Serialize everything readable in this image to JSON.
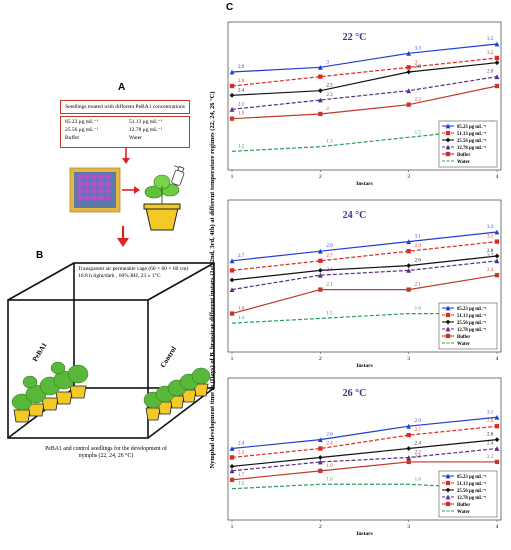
{
  "panels": {
    "a_label": "A",
    "b_label": "B",
    "c_label": "C"
  },
  "panel_a": {
    "title": "Seedlings treated with different PeBA1 concentrations",
    "concentrations": [
      "85.23 μg mL⁻¹",
      "51.13 μg mL⁻¹",
      "25.56 μg mL⁻¹",
      "12.78 μg mL⁻¹",
      "Buffer",
      "Water"
    ]
  },
  "panel_b": {
    "cage_line1": "Transparent  air permeable cage (60 × 60 × 60 cm)",
    "cage_line2": "16:8 h light/dark , 60% RH, 23 ± 1°C",
    "label_pebai": "PeBA1",
    "label_control": "Control",
    "caption_line1": "PeBA1  and control seedlings for the development of",
    "caption_line2": "nymphs (22, 24, 26 °C)"
  },
  "panel_c": {
    "ylabel": "Nymphal development time in (Days) of B. brassicae different instars (1st, 2nd, 3rd, 4th) at different temperature regimes (22, 24, 26 °C)",
    "xlabel": "Instars"
  },
  "chart_data": [
    {
      "type": "line",
      "title": "22 °C",
      "xlabel": "Instars",
      "x": [
        1,
        2,
        3,
        4
      ],
      "series": [
        {
          "name": "85.23 μg mL⁻¹",
          "values": [
            2.9,
            3.0,
            3.3,
            3.5
          ],
          "labels": [
            "2.9",
            "3",
            "3.3",
            "3.5"
          ]
        },
        {
          "name": "51.13 μg mL⁻¹",
          "values": [
            2.6,
            2.8,
            3.0,
            3.2
          ],
          "labels": [
            "2.6",
            "",
            "3",
            "3.2"
          ]
        },
        {
          "name": "25.56 μg mL⁻¹",
          "values": [
            2.4,
            2.5,
            2.9,
            3.1
          ],
          "labels": [
            "2.4",
            "2.5",
            "2.9",
            ""
          ]
        },
        {
          "name": "12.78 μg mL⁻¹",
          "values": [
            2.1,
            2.3,
            2.5,
            2.8
          ],
          "labels": [
            "2.1",
            "2.3",
            "",
            "2.8"
          ]
        },
        {
          "name": "Buffer",
          "values": [
            1.9,
            2.0,
            2.2,
            2.6
          ],
          "labels": [
            "1.9",
            "2",
            "2.2",
            ""
          ]
        },
        {
          "name": "Water",
          "values": [
            1.2,
            1.3,
            1.5,
            1.7
          ],
          "labels": [
            "1.2",
            "1.3",
            "1.5",
            "1.7"
          ]
        }
      ]
    },
    {
      "type": "line",
      "title": "24 °C",
      "xlabel": "Instars",
      "x": [
        1,
        2,
        3,
        4
      ],
      "series": [
        {
          "name": "85.23 μg mL⁻¹",
          "values": [
            2.7,
            2.9,
            3.1,
            3.3
          ],
          "labels": [
            "2.7",
            "2.9",
            "3.1",
            "3.3"
          ]
        },
        {
          "name": "51.13 μg mL⁻¹",
          "values": [
            2.5,
            2.7,
            2.9,
            3.1
          ],
          "labels": [
            "",
            "2.7",
            "2.9",
            "3.1"
          ]
        },
        {
          "name": "25.56 μg mL⁻¹",
          "values": [
            2.3,
            2.5,
            2.6,
            2.8
          ],
          "labels": [
            "",
            "",
            "2.6",
            "2.8"
          ]
        },
        {
          "name": "12.78 μg mL⁻¹",
          "values": [
            2.1,
            2.4,
            2.5,
            2.7
          ],
          "labels": [
            "",
            "2.4",
            "",
            "2.7"
          ]
        },
        {
          "name": "Buffer",
          "values": [
            1.6,
            2.1,
            2.1,
            2.4
          ],
          "labels": [
            "1.6",
            "2.1",
            "2.1",
            "2.4"
          ]
        },
        {
          "name": "Water",
          "values": [
            1.4,
            1.5,
            1.6,
            1.6
          ],
          "labels": [
            "1.4",
            "1.5",
            "1.6",
            "1.6"
          ]
        }
      ]
    },
    {
      "type": "line",
      "title": "26 °C",
      "xlabel": "Instars",
      "x": [
        1,
        2,
        3,
        4
      ],
      "series": [
        {
          "name": "85.23 μg mL⁻¹",
          "values": [
            2.4,
            2.6,
            2.9,
            3.1
          ],
          "labels": [
            "2.4",
            "2.6",
            "2.9",
            "3.1"
          ]
        },
        {
          "name": "51.13 μg mL⁻¹",
          "values": [
            2.2,
            2.4,
            2.7,
            2.9
          ],
          "labels": [
            "2.2",
            "2.4",
            "2.7",
            "2.9"
          ]
        },
        {
          "name": "25.56 μg mL⁻¹",
          "values": [
            2.0,
            2.2,
            2.4,
            2.6
          ],
          "labels": [
            "",
            "",
            "2.4",
            "2.6"
          ]
        },
        {
          "name": "12.78 μg mL⁻¹",
          "values": [
            1.9,
            2.1,
            2.2,
            2.4
          ],
          "labels": [
            "",
            "",
            "2.2",
            "2.4"
          ]
        },
        {
          "name": "Buffer",
          "values": [
            1.7,
            1.9,
            2.1,
            2.1
          ],
          "labels": [
            "1.7",
            "1.9",
            "2.1",
            "2.1"
          ]
        },
        {
          "name": "Water",
          "values": [
            1.5,
            1.6,
            1.6,
            1.5
          ],
          "labels": [
            "1.5",
            "1.6",
            "1.6",
            "1.5"
          ]
        }
      ]
    }
  ],
  "chart_style": {
    "colors": [
      "#1f3fd1",
      "#e0281e",
      "#111111",
      "#5b2a8a",
      "#c0392b",
      "#27a05a"
    ],
    "dashed": [
      false,
      true,
      false,
      true,
      false,
      true
    ],
    "markers": [
      "triangle",
      "square",
      "diamond",
      "triangle",
      "square",
      "none"
    ],
    "legend_placement": "bottom-right",
    "title_color": "#4a2a8c",
    "ylim": [
      0.8,
      3.8
    ]
  }
}
